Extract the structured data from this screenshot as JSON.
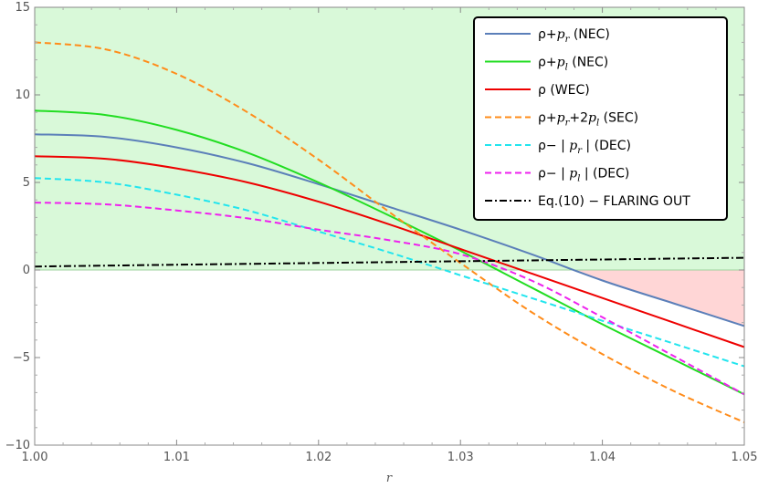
{
  "chart_data": {
    "type": "line",
    "xlabel": "r",
    "ylabel": "",
    "xlim": [
      1.0,
      1.05
    ],
    "ylim": [
      -10,
      15
    ],
    "x_ticks": [
      "1.00",
      "1.01",
      "1.02",
      "1.03",
      "1.04",
      "1.05"
    ],
    "y_ticks": [
      "15",
      "10",
      "5",
      "0",
      "-5",
      "-10"
    ],
    "shading": [
      {
        "name": "positive region",
        "color": "#d9f9d9"
      },
      {
        "name": "negative region",
        "color": "#ffd6d6"
      }
    ],
    "legend_position": "top-right",
    "series": [
      {
        "key": "rho_pr",
        "color": "#5b7fb9",
        "dash": "solid",
        "legend": {
          "t1": "ρ+",
          "it": "p",
          "sub": "r",
          "t2": " (NEC)"
        },
        "points": [
          [
            1.0,
            7.75
          ],
          [
            1.005,
            7.6
          ],
          [
            1.01,
            7.0
          ],
          [
            1.015,
            6.1
          ],
          [
            1.02,
            4.9
          ],
          [
            1.025,
            3.6
          ],
          [
            1.03,
            2.3
          ],
          [
            1.035,
            0.9
          ],
          [
            1.04,
            -0.6
          ],
          [
            1.045,
            -1.9
          ],
          [
            1.05,
            -3.2
          ]
        ]
      },
      {
        "key": "rho_pl",
        "color": "#22dd22",
        "dash": "solid",
        "legend": {
          "t1": "ρ+",
          "it": "p",
          "sub": "l",
          "t2": " (NEC)"
        },
        "points": [
          [
            1.0,
            9.1
          ],
          [
            1.005,
            8.85
          ],
          [
            1.01,
            8.0
          ],
          [
            1.015,
            6.7
          ],
          [
            1.02,
            5.0
          ],
          [
            1.025,
            3.1
          ],
          [
            1.03,
            1.1
          ],
          [
            1.035,
            -1.0
          ],
          [
            1.04,
            -3.1
          ],
          [
            1.045,
            -5.1
          ],
          [
            1.05,
            -7.1
          ]
        ]
      },
      {
        "key": "rho",
        "color": "#ee0000",
        "dash": "solid",
        "legend": {
          "t1": "ρ (WEC)"
        },
        "points": [
          [
            1.0,
            6.5
          ],
          [
            1.005,
            6.35
          ],
          [
            1.01,
            5.8
          ],
          [
            1.015,
            5.0
          ],
          [
            1.02,
            3.9
          ],
          [
            1.025,
            2.6
          ],
          [
            1.03,
            1.2
          ],
          [
            1.035,
            -0.2
          ],
          [
            1.04,
            -1.6
          ],
          [
            1.045,
            -3.0
          ],
          [
            1.05,
            -4.4
          ]
        ]
      },
      {
        "key": "rho_pr_2pl",
        "color": "#ff8c1a",
        "dash": "dashed",
        "legend": {
          "t1": "ρ+",
          "it": "p",
          "sub": "r",
          "t2": "+2",
          "it2": "p",
          "sub2": "l",
          "t3": " (SEC)"
        },
        "points": [
          [
            1.0,
            13.0
          ],
          [
            1.005,
            12.6
          ],
          [
            1.01,
            11.2
          ],
          [
            1.015,
            9.0
          ],
          [
            1.02,
            6.3
          ],
          [
            1.025,
            3.3
          ],
          [
            1.03,
            0.4
          ],
          [
            1.035,
            -2.4
          ],
          [
            1.04,
            -4.8
          ],
          [
            1.045,
            -6.9
          ],
          [
            1.05,
            -8.7
          ]
        ]
      },
      {
        "key": "rho_minus_abs_pr",
        "color": "#22e5ee",
        "dash": "dashed",
        "legend": {
          "t1": "ρ− | ",
          "it": "p",
          "sub": "r",
          "t2": " |  (DEC)"
        },
        "points": [
          [
            1.0,
            5.25
          ],
          [
            1.005,
            5.0
          ],
          [
            1.01,
            4.3
          ],
          [
            1.015,
            3.4
          ],
          [
            1.02,
            2.2
          ],
          [
            1.025,
            1.0
          ],
          [
            1.03,
            -0.3
          ],
          [
            1.035,
            -1.6
          ],
          [
            1.04,
            -2.9
          ],
          [
            1.045,
            -4.2
          ],
          [
            1.05,
            -5.5
          ]
        ]
      },
      {
        "key": "rho_minus_abs_pl",
        "color": "#ee22ee",
        "dash": "dashed",
        "legend": {
          "t1": "ρ− | ",
          "it": "p",
          "sub": "l",
          "t2": " |  (DEC)"
        },
        "points": [
          [
            1.0,
            3.85
          ],
          [
            1.005,
            3.75
          ],
          [
            1.01,
            3.4
          ],
          [
            1.015,
            2.95
          ],
          [
            1.02,
            2.3
          ],
          [
            1.025,
            1.7
          ],
          [
            1.03,
            0.9
          ],
          [
            1.035,
            -0.6
          ],
          [
            1.04,
            -2.7
          ],
          [
            1.045,
            -4.9
          ],
          [
            1.05,
            -7.1
          ]
        ]
      },
      {
        "key": "flaring_out",
        "color": "#000000",
        "dash": "dashdot",
        "legend": {
          "t1": "Eq.(10) − FLARING OUT"
        },
        "points": [
          [
            1.0,
            0.2
          ],
          [
            1.01,
            0.3
          ],
          [
            1.02,
            0.4
          ],
          [
            1.03,
            0.5
          ],
          [
            1.04,
            0.6
          ],
          [
            1.05,
            0.7
          ]
        ]
      }
    ]
  }
}
